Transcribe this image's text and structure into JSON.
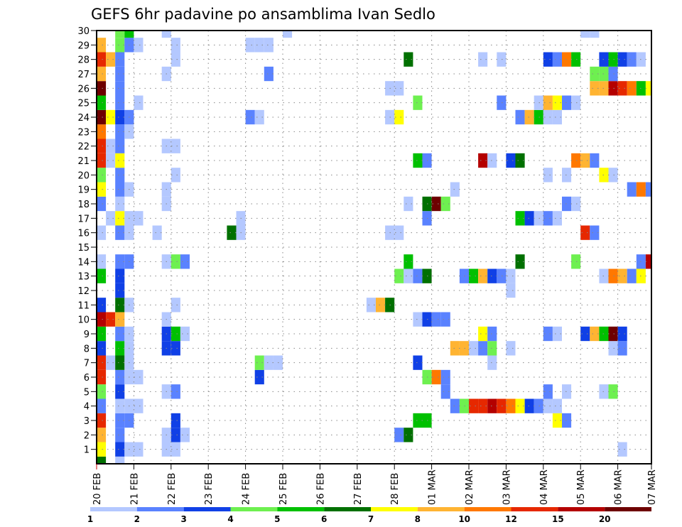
{
  "chart_data": {
    "type": "heatmap",
    "title": "GEFS 6hr padavine po ansamblima Ivan Sedlo",
    "xlabel": "",
    "ylabel": "",
    "x_ticks": [
      "20 FEB",
      "21 FEB",
      "22 FEB",
      "23 FEB",
      "24 FEB",
      "25 FEB",
      "26 FEB",
      "27 FEB",
      "28 FEB",
      "01 MAR",
      "02 MAR",
      "03 MAR",
      "04 MAR",
      "05 MAR",
      "06 MAR",
      "07 MAR"
    ],
    "x_step": "6hr",
    "steps_per_day": 4,
    "y_ticks": [
      1,
      2,
      3,
      4,
      5,
      6,
      7,
      8,
      9,
      10,
      11,
      12,
      13,
      14,
      15,
      16,
      17,
      18,
      19,
      20,
      21,
      22,
      23,
      24,
      25,
      26,
      27,
      28,
      29,
      30
    ],
    "ylim": [
      0,
      30
    ],
    "grid": true,
    "colorbar": {
      "labels": [
        "1",
        "2",
        "3",
        "4",
        "5",
        "6",
        "7",
        "8",
        "10",
        "12",
        "15",
        "20"
      ],
      "colors": [
        "#b4c8ff",
        "#5a82ff",
        "#1040e6",
        "#6ef050",
        "#00c000",
        "#007000",
        "#ffff00",
        "#ffb432",
        "#ff7800",
        "#e62800",
        "#b40000",
        "#6e0000"
      ],
      "placement": "bottom"
    },
    "cells_format": "row (ensemble member) -> list of [6hr step index from 20 FEB 00Z, colorbar bin index]",
    "cells": {
      "30": [
        [
          2,
          3
        ],
        [
          3,
          4
        ],
        [
          7,
          0
        ],
        [
          20,
          0
        ],
        [
          52,
          0
        ],
        [
          53,
          0
        ]
      ],
      "29": [
        [
          0,
          7
        ],
        [
          2,
          3
        ],
        [
          3,
          1
        ],
        [
          4,
          0
        ],
        [
          8,
          0
        ],
        [
          16,
          0
        ],
        [
          17,
          0
        ],
        [
          18,
          0
        ]
      ],
      "28": [
        [
          0,
          9
        ],
        [
          1,
          7
        ],
        [
          2,
          1
        ],
        [
          8,
          0
        ],
        [
          33,
          5
        ],
        [
          41,
          0
        ],
        [
          43,
          0
        ],
        [
          48,
          2
        ],
        [
          49,
          1
        ],
        [
          50,
          8
        ],
        [
          51,
          4
        ],
        [
          54,
          2
        ],
        [
          55,
          4
        ],
        [
          56,
          2
        ],
        [
          57,
          1
        ],
        [
          58,
          0
        ]
      ],
      "27": [
        [
          0,
          7
        ],
        [
          2,
          1
        ],
        [
          7,
          0
        ],
        [
          18,
          1
        ],
        [
          53,
          3
        ],
        [
          54,
          3
        ],
        [
          55,
          1
        ]
      ],
      "26": [
        [
          0,
          11
        ],
        [
          2,
          1
        ],
        [
          31,
          0
        ],
        [
          32,
          0
        ],
        [
          53,
          7
        ],
        [
          54,
          7
        ],
        [
          55,
          10
        ],
        [
          56,
          9
        ],
        [
          57,
          8
        ],
        [
          58,
          4
        ],
        [
          59,
          6
        ]
      ],
      "25": [
        [
          0,
          4
        ],
        [
          2,
          1
        ],
        [
          4,
          0
        ],
        [
          34,
          3
        ],
        [
          43,
          1
        ],
        [
          47,
          0
        ],
        [
          48,
          7
        ],
        [
          49,
          6
        ],
        [
          50,
          1
        ],
        [
          51,
          0
        ]
      ],
      "24": [
        [
          0,
          11
        ],
        [
          1,
          6
        ],
        [
          2,
          2
        ],
        [
          3,
          1
        ],
        [
          16,
          1
        ],
        [
          17,
          0
        ],
        [
          31,
          0
        ],
        [
          32,
          6
        ],
        [
          45,
          1
        ],
        [
          46,
          7
        ],
        [
          47,
          4
        ],
        [
          48,
          0
        ],
        [
          49,
          0
        ]
      ],
      "23": [
        [
          0,
          8
        ],
        [
          2,
          1
        ],
        [
          3,
          0
        ]
      ],
      "22": [
        [
          0,
          9
        ],
        [
          1,
          0
        ],
        [
          2,
          1
        ],
        [
          7,
          0
        ],
        [
          8,
          0
        ]
      ],
      "21": [
        [
          0,
          9
        ],
        [
          1,
          0
        ],
        [
          2,
          6
        ],
        [
          34,
          4
        ],
        [
          35,
          1
        ],
        [
          41,
          10
        ],
        [
          42,
          0
        ],
        [
          44,
          2
        ],
        [
          45,
          5
        ],
        [
          51,
          8
        ],
        [
          52,
          7
        ],
        [
          53,
          1
        ]
      ],
      "20": [
        [
          0,
          3
        ],
        [
          2,
          1
        ],
        [
          8,
          0
        ],
        [
          48,
          0
        ],
        [
          50,
          0
        ],
        [
          54,
          6
        ],
        [
          55,
          0
        ]
      ],
      "19": [
        [
          0,
          6
        ],
        [
          2,
          1
        ],
        [
          3,
          0
        ],
        [
          7,
          0
        ],
        [
          38,
          0
        ],
        [
          57,
          1
        ],
        [
          58,
          8
        ],
        [
          59,
          1
        ]
      ],
      "18": [
        [
          0,
          1
        ],
        [
          2,
          0
        ],
        [
          7,
          0
        ],
        [
          33,
          0
        ],
        [
          35,
          5
        ],
        [
          36,
          11
        ],
        [
          37,
          3
        ],
        [
          50,
          1
        ],
        [
          51,
          0
        ]
      ],
      "17": [
        [
          1,
          0
        ],
        [
          2,
          6
        ],
        [
          3,
          0
        ],
        [
          4,
          0
        ],
        [
          15,
          0
        ],
        [
          35,
          1
        ],
        [
          45,
          4
        ],
        [
          46,
          2
        ],
        [
          47,
          0
        ],
        [
          48,
          1
        ],
        [
          49,
          0
        ]
      ],
      "16": [
        [
          0,
          0
        ],
        [
          2,
          1
        ],
        [
          3,
          0
        ],
        [
          6,
          0
        ],
        [
          14,
          5
        ],
        [
          15,
          0
        ],
        [
          31,
          0
        ],
        [
          32,
          0
        ],
        [
          52,
          9
        ],
        [
          53,
          1
        ]
      ],
      "14": [
        [
          0,
          0
        ],
        [
          2,
          1
        ],
        [
          3,
          1
        ],
        [
          7,
          0
        ],
        [
          8,
          3
        ],
        [
          9,
          1
        ],
        [
          33,
          4
        ],
        [
          45,
          5
        ],
        [
          51,
          3
        ],
        [
          58,
          1
        ],
        [
          59,
          10
        ]
      ],
      "13": [
        [
          0,
          4
        ],
        [
          2,
          2
        ],
        [
          32,
          3
        ],
        [
          33,
          0
        ],
        [
          34,
          1
        ],
        [
          35,
          5
        ],
        [
          39,
          1
        ],
        [
          40,
          4
        ],
        [
          41,
          7
        ],
        [
          42,
          2
        ],
        [
          43,
          1
        ],
        [
          44,
          0
        ],
        [
          54,
          0
        ],
        [
          55,
          8
        ],
        [
          56,
          7
        ],
        [
          57,
          1
        ],
        [
          58,
          6
        ]
      ],
      "12": [
        [
          2,
          2
        ],
        [
          44,
          0
        ]
      ],
      "11": [
        [
          0,
          2
        ],
        [
          2,
          5
        ],
        [
          3,
          0
        ],
        [
          8,
          0
        ],
        [
          29,
          0
        ],
        [
          30,
          7
        ],
        [
          31,
          5
        ]
      ],
      "10": [
        [
          0,
          10
        ],
        [
          1,
          9
        ],
        [
          2,
          7
        ],
        [
          7,
          0
        ],
        [
          34,
          0
        ],
        [
          35,
          2
        ],
        [
          36,
          1
        ],
        [
          37,
          1
        ]
      ],
      "9": [
        [
          0,
          4
        ],
        [
          2,
          1
        ],
        [
          3,
          0
        ],
        [
          7,
          2
        ],
        [
          8,
          4
        ],
        [
          9,
          0
        ],
        [
          41,
          6
        ],
        [
          42,
          1
        ],
        [
          48,
          1
        ],
        [
          49,
          0
        ],
        [
          52,
          2
        ],
        [
          53,
          7
        ],
        [
          54,
          4
        ],
        [
          55,
          11
        ],
        [
          56,
          2
        ]
      ],
      "8": [
        [
          0,
          2
        ],
        [
          2,
          4
        ],
        [
          3,
          0
        ],
        [
          7,
          2
        ],
        [
          8,
          2
        ],
        [
          38,
          7
        ],
        [
          39,
          7
        ],
        [
          40,
          0
        ],
        [
          41,
          1
        ],
        [
          42,
          3
        ],
        [
          44,
          0
        ],
        [
          55,
          0
        ],
        [
          56,
          1
        ]
      ],
      "7": [
        [
          0,
          9
        ],
        [
          1,
          0
        ],
        [
          2,
          5
        ],
        [
          3,
          0
        ],
        [
          17,
          3
        ],
        [
          18,
          0
        ],
        [
          19,
          0
        ],
        [
          34,
          2
        ],
        [
          42,
          0
        ]
      ],
      "6": [
        [
          0,
          9
        ],
        [
          2,
          1
        ],
        [
          3,
          0
        ],
        [
          4,
          0
        ],
        [
          17,
          2
        ],
        [
          35,
          3
        ],
        [
          36,
          8
        ],
        [
          37,
          1
        ]
      ],
      "5": [
        [
          0,
          3
        ],
        [
          2,
          2
        ],
        [
          7,
          0
        ],
        [
          8,
          1
        ],
        [
          37,
          1
        ],
        [
          48,
          1
        ],
        [
          50,
          0
        ],
        [
          54,
          0
        ],
        [
          55,
          3
        ]
      ],
      "4": [
        [
          0,
          1
        ],
        [
          2,
          0
        ],
        [
          3,
          0
        ],
        [
          4,
          0
        ],
        [
          38,
          1
        ],
        [
          39,
          3
        ],
        [
          40,
          9
        ],
        [
          41,
          9
        ],
        [
          42,
          10
        ],
        [
          43,
          9
        ],
        [
          44,
          8
        ],
        [
          45,
          6
        ],
        [
          46,
          2
        ],
        [
          47,
          1
        ],
        [
          48,
          0
        ],
        [
          49,
          0
        ]
      ],
      "3": [
        [
          0,
          9
        ],
        [
          2,
          1
        ],
        [
          3,
          1
        ],
        [
          8,
          2
        ],
        [
          34,
          4
        ],
        [
          35,
          4
        ],
        [
          49,
          6
        ],
        [
          50,
          1
        ]
      ],
      "2": [
        [
          0,
          7
        ],
        [
          2,
          1
        ],
        [
          7,
          0
        ],
        [
          8,
          2
        ],
        [
          9,
          0
        ],
        [
          32,
          1
        ],
        [
          33,
          5
        ]
      ],
      "1": [
        [
          0,
          6
        ],
        [
          2,
          2
        ],
        [
          3,
          0
        ],
        [
          4,
          0
        ],
        [
          7,
          0
        ],
        [
          8,
          0
        ],
        [
          56,
          0
        ]
      ],
      "0": [
        [
          0,
          5
        ],
        [
          2,
          0
        ]
      ]
    }
  }
}
